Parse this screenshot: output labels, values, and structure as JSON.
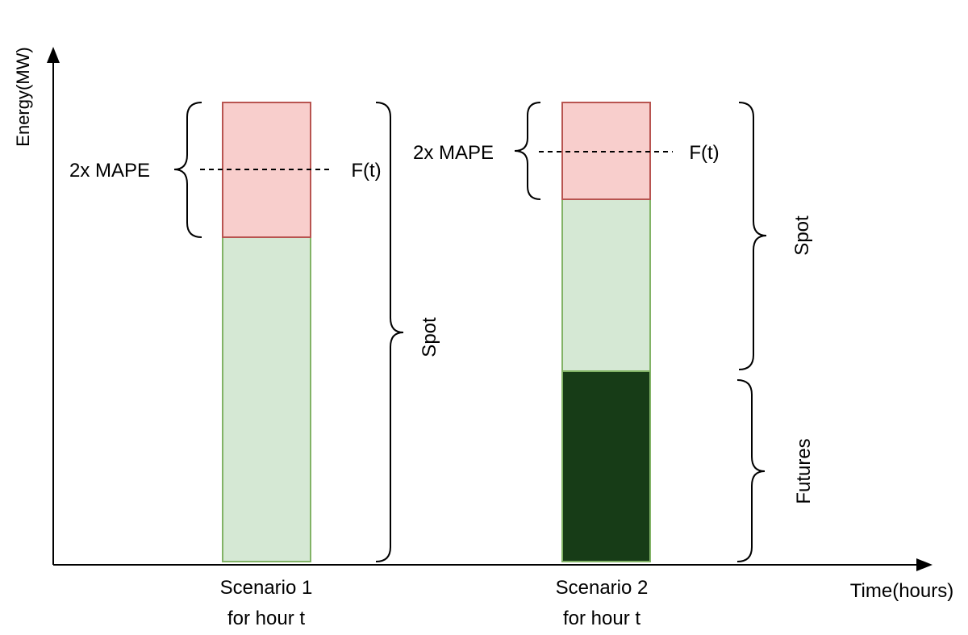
{
  "axes": {
    "y_label": "Energy(MW)",
    "x_label": "Time(hours)"
  },
  "colors": {
    "red_fill": "#f8cecc",
    "red_stroke": "#b85450",
    "light_green_fill": "#d5e8d4",
    "light_green_stroke": "#82b366",
    "dark_green_fill": "#173c17",
    "axis": "#000000"
  },
  "scenario1": {
    "mape_label": "2x MAPE",
    "forecast_label": "F(t)",
    "spot_label": "Spot",
    "caption_line1": "Scenario 1",
    "caption_line2": "for hour t"
  },
  "scenario2": {
    "mape_label": "2x MAPE",
    "forecast_label": "F(t)",
    "spot_label": "Spot",
    "futures_label": "Futures",
    "caption_line1": "Scenario 2",
    "caption_line2": "for hour t"
  }
}
